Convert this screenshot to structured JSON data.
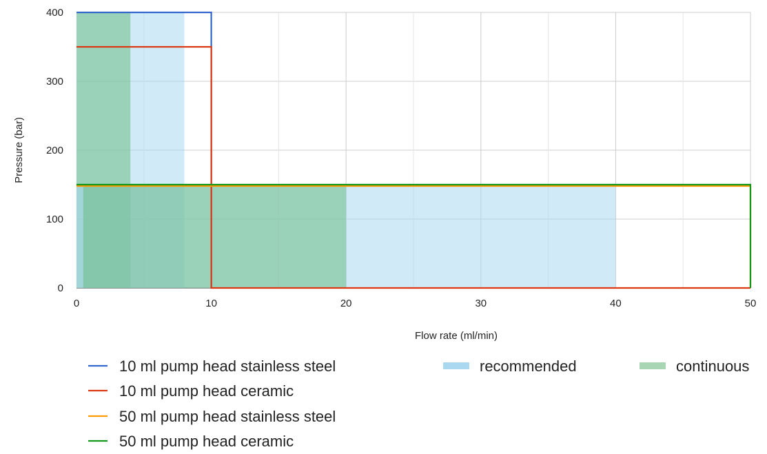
{
  "chart_data": {
    "type": "line",
    "xlabel": "Flow rate (ml/min)",
    "ylabel": "Pressure (bar)",
    "xlim": [
      0,
      50
    ],
    "ylim": [
      0,
      400
    ],
    "x_ticks": [
      0,
      10,
      20,
      30,
      40,
      50
    ],
    "y_ticks": [
      0,
      100,
      200,
      300,
      400
    ],
    "x_minor_gridlines": [
      5,
      15,
      25,
      35,
      45
    ],
    "grid": true,
    "legend_position": "bottom",
    "series": [
      {
        "name": "10 ml pump head stainless steel",
        "color": "#3366cc",
        "points": [
          [
            0,
            400
          ],
          [
            10,
            400
          ],
          [
            10,
            0
          ]
        ]
      },
      {
        "name": "10 ml pump head ceramic",
        "color": "#dc3912",
        "points": [
          [
            0,
            350
          ],
          [
            10,
            350
          ],
          [
            10,
            0
          ],
          [
            50,
            0
          ]
        ]
      },
      {
        "name": "50 ml pump head stainless steel",
        "color": "#ff9900",
        "points": [
          [
            0,
            148
          ],
          [
            50,
            148
          ],
          [
            50,
            0
          ]
        ]
      },
      {
        "name": "50 ml pump head ceramic",
        "color": "#109618",
        "points": [
          [
            0,
            150
          ],
          [
            50,
            150
          ],
          [
            50,
            0
          ]
        ]
      }
    ],
    "areas": [
      {
        "name": "recommended",
        "color": "#aad8f0",
        "opacity": 0.55,
        "x": [
          0,
          8
        ],
        "y": [
          0,
          400
        ]
      },
      {
        "name": "continuous",
        "color": "#6dbb86",
        "opacity": 0.55,
        "x": [
          0,
          4
        ],
        "y": [
          0,
          400
        ]
      },
      {
        "name": "recommended",
        "color": "#aad8f0",
        "opacity": 0.55,
        "x": [
          0,
          40
        ],
        "y": [
          0,
          148
        ]
      },
      {
        "name": "continuous",
        "color": "#6dbb86",
        "opacity": 0.55,
        "x": [
          0.5,
          20
        ],
        "y": [
          0,
          148
        ]
      }
    ],
    "legend": [
      {
        "label": "10 ml pump head stainless steel",
        "kind": "line",
        "color": "#3366cc"
      },
      {
        "label": "10 ml pump head ceramic",
        "kind": "line",
        "color": "#dc3912"
      },
      {
        "label": "50 ml pump head stainless steel",
        "kind": "line",
        "color": "#ff9900"
      },
      {
        "label": "50 ml pump head ceramic",
        "kind": "line",
        "color": "#109618"
      },
      {
        "label": "recommended",
        "kind": "area",
        "color": "#aad8f0"
      },
      {
        "label": "continuous",
        "kind": "area",
        "color": "#a8d5b4"
      }
    ]
  }
}
